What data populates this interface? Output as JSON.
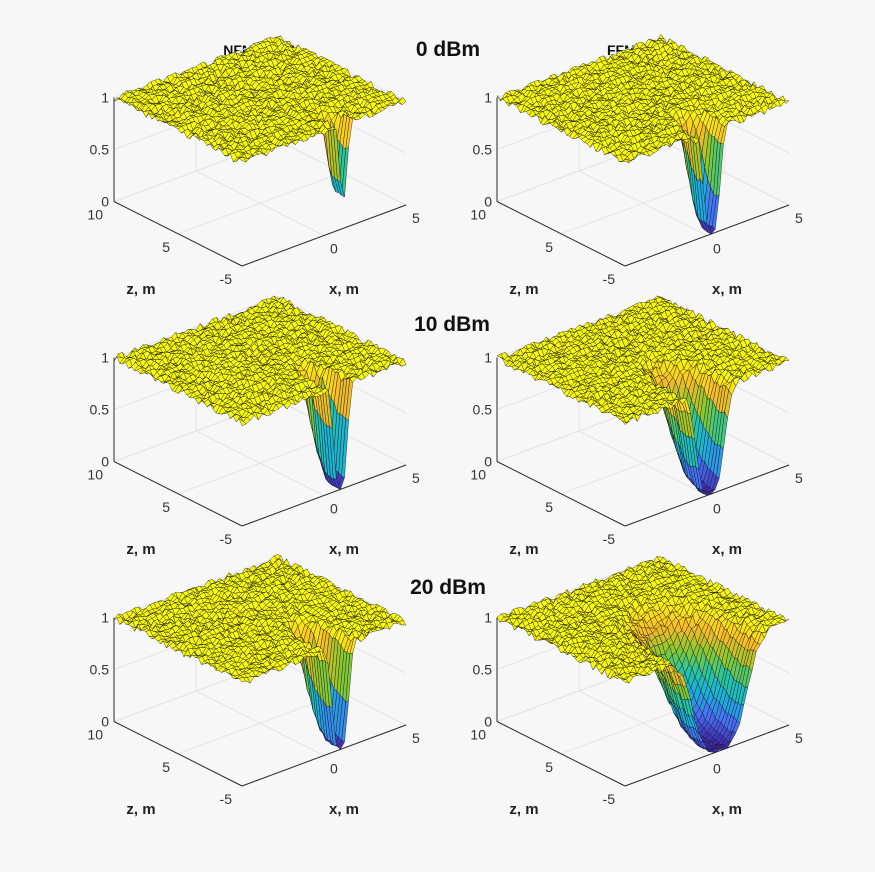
{
  "chart_data": {
    "type": "surface",
    "row_titles": [
      "0 dBm",
      "10 dBm",
      "20 dBm"
    ],
    "column_titles": [
      "NFMC, MM",
      "FFMC, MM"
    ],
    "xlabel": "x, m",
    "ylabel": "z, m",
    "xlim": [
      -5,
      5
    ],
    "ylim": [
      0,
      10
    ],
    "zlim": [
      0,
      1
    ],
    "x_ticks": [
      "-5",
      "0",
      "5"
    ],
    "y_ticks": [
      "5",
      "10"
    ],
    "z_ticks": [
      "0",
      "0.5",
      "1"
    ],
    "colormap": [
      "#3e26a8",
      "#4770f8",
      "#1cafdf",
      "#24c6a3",
      "#8bc92c",
      "#f9ba2b",
      "#f9fb0e"
    ],
    "noise_amplitude": 0.04,
    "panels": [
      {
        "row": 0,
        "col": 0,
        "dip_center_x": 1.2,
        "dip_center_z": 0.6,
        "dip_width_x": 0.3,
        "dip_width_z": 0.8,
        "dip_depth": 0.7
      },
      {
        "row": 0,
        "col": 1,
        "dip_center_x": 0.3,
        "dip_center_z": 0.3,
        "dip_width_x": 0.6,
        "dip_width_z": 1.6,
        "dip_depth": 1.0
      },
      {
        "row": 1,
        "col": 0,
        "dip_center_x": 1.0,
        "dip_center_z": 0.3,
        "dip_width_x": 0.5,
        "dip_width_z": 2.2,
        "dip_depth": 1.0
      },
      {
        "row": 1,
        "col": 1,
        "dip_center_x": 0.2,
        "dip_center_z": 0.3,
        "dip_width_x": 1.0,
        "dip_width_z": 3.0,
        "dip_depth": 1.0
      },
      {
        "row": 2,
        "col": 0,
        "dip_center_x": 1.0,
        "dip_center_z": 0.3,
        "dip_width_x": 0.6,
        "dip_width_z": 2.6,
        "dip_depth": 1.0
      },
      {
        "row": 2,
        "col": 1,
        "dip_center_x": 0.8,
        "dip_center_z": 0.3,
        "dip_width_x": 1.9,
        "dip_width_z": 4.2,
        "dip_depth": 1.0
      }
    ]
  }
}
